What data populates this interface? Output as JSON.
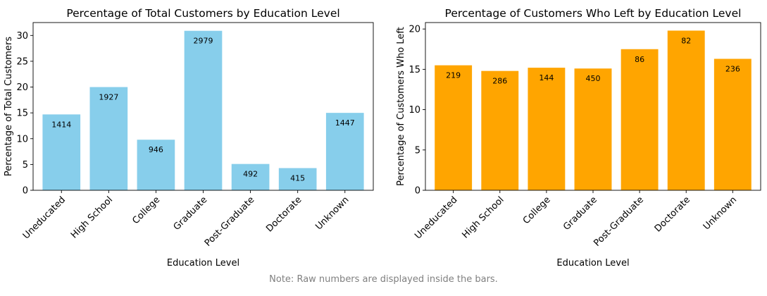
{
  "note": "Note: Raw numbers are displayed inside the bars.",
  "chart_data": [
    {
      "type": "bar",
      "title": "Percentage of Total Customers by Education Level",
      "xlabel": "Education Level",
      "ylabel": "Percentage of Total Customers",
      "categories": [
        "Uneducated",
        "High School",
        "College",
        "Graduate",
        "Post-Graduate",
        "Doctorate",
        "Unknown"
      ],
      "values": [
        14.7,
        20.0,
        9.8,
        30.9,
        5.1,
        4.3,
        15.0
      ],
      "bar_labels": [
        "1414",
        "1927",
        "946",
        "2979",
        "492",
        "415",
        "1447"
      ],
      "ylim": [
        0,
        32.5
      ],
      "yticks": [
        0,
        5,
        10,
        15,
        20,
        25,
        30
      ],
      "color": "#87ceeb",
      "grid": false
    },
    {
      "type": "bar",
      "title": "Percentage of Customers Who Left by Education Level",
      "xlabel": "Education Level",
      "ylabel": "Percentage of Customers Who Left",
      "categories": [
        "Uneducated",
        "High School",
        "College",
        "Graduate",
        "Post-Graduate",
        "Doctorate",
        "Unknown"
      ],
      "values": [
        15.5,
        14.8,
        15.2,
        15.1,
        17.5,
        19.8,
        16.3
      ],
      "bar_labels": [
        "219",
        "286",
        "144",
        "450",
        "86",
        "82",
        "236"
      ],
      "ylim": [
        0,
        20.8
      ],
      "yticks": [
        0,
        5,
        10,
        15,
        20
      ],
      "color": "#ffa500",
      "grid": false
    }
  ]
}
